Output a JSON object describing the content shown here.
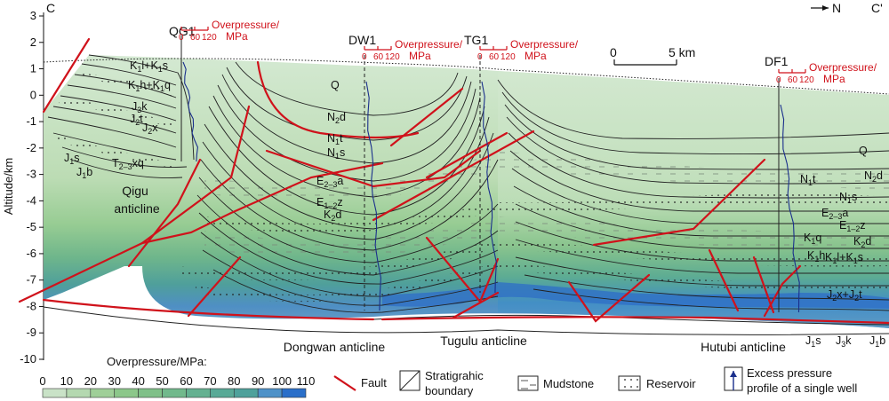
{
  "section": {
    "corner_left": "C",
    "corner_right": "C'",
    "north_label": "N",
    "y_axis_title": "Altitude/km",
    "y_ticks": [
      "3",
      "2",
      "1",
      "0",
      "-1",
      "-2",
      "-3",
      "-4",
      "-5",
      "-6",
      "-7",
      "-8",
      "-9",
      "-10"
    ],
    "scale_labels": [
      "0",
      "5 km"
    ],
    "wells": [
      {
        "name": "QG1",
        "ticks": [
          "0",
          "60",
          "120"
        ],
        "unit": "Overpressure/\nMPa"
      },
      {
        "name": "DW1",
        "ticks": [
          "0",
          "60",
          "120"
        ],
        "unit": "Overpressure/\nMPa"
      },
      {
        "name": "TG1",
        "ticks": [
          "0",
          "60",
          "120"
        ],
        "unit": "Overpressure/\nMPa"
      },
      {
        "name": "DF1",
        "ticks": [
          "0",
          "60",
          "120"
        ],
        "unit": "Overpressure/\nMPa"
      }
    ],
    "strata_labels_left": [
      "K1l+K1s",
      "K1h+K1q",
      "J3k",
      "J2t",
      "J2x",
      "J1s",
      "J1b",
      "T2-3xq"
    ],
    "strata_labels_center": [
      "Q",
      "N2d",
      "N1t",
      "N1s",
      "E2-3a",
      "E1-2z",
      "K2d"
    ],
    "strata_labels_right": [
      "Q",
      "N2d",
      "N1t",
      "N1s",
      "E2-3a",
      "E1-2z",
      "K2d",
      "K1q",
      "K1h",
      "K1l+K1s",
      "J2x+J2t",
      "J1s",
      "J3k",
      "J1b"
    ],
    "structures": [
      "Qigu anticline",
      "Dongwan anticline",
      "Tugulu anticline",
      "Hutubi anticline"
    ]
  },
  "legend": {
    "title": "Overpressure/MPa:",
    "ticks": [
      "0",
      "10",
      "20",
      "30",
      "40",
      "50",
      "60",
      "70",
      "80",
      "90",
      "100",
      "110"
    ],
    "colors": [
      "#c9e2c7",
      "#b4d8b0",
      "#9fcf98",
      "#8cc78a",
      "#7fc088",
      "#71b98c",
      "#64b191",
      "#58a996",
      "#4ea19b",
      "#4e92c8",
      "#2a6fc9"
    ],
    "items": {
      "fault": "Fault",
      "boundary": "Stratigrahic\nboundary",
      "mudstone": "Mudstone",
      "reservoir": "Reservoir",
      "profile": "Excess pressure\nprofile of a single well"
    }
  }
}
